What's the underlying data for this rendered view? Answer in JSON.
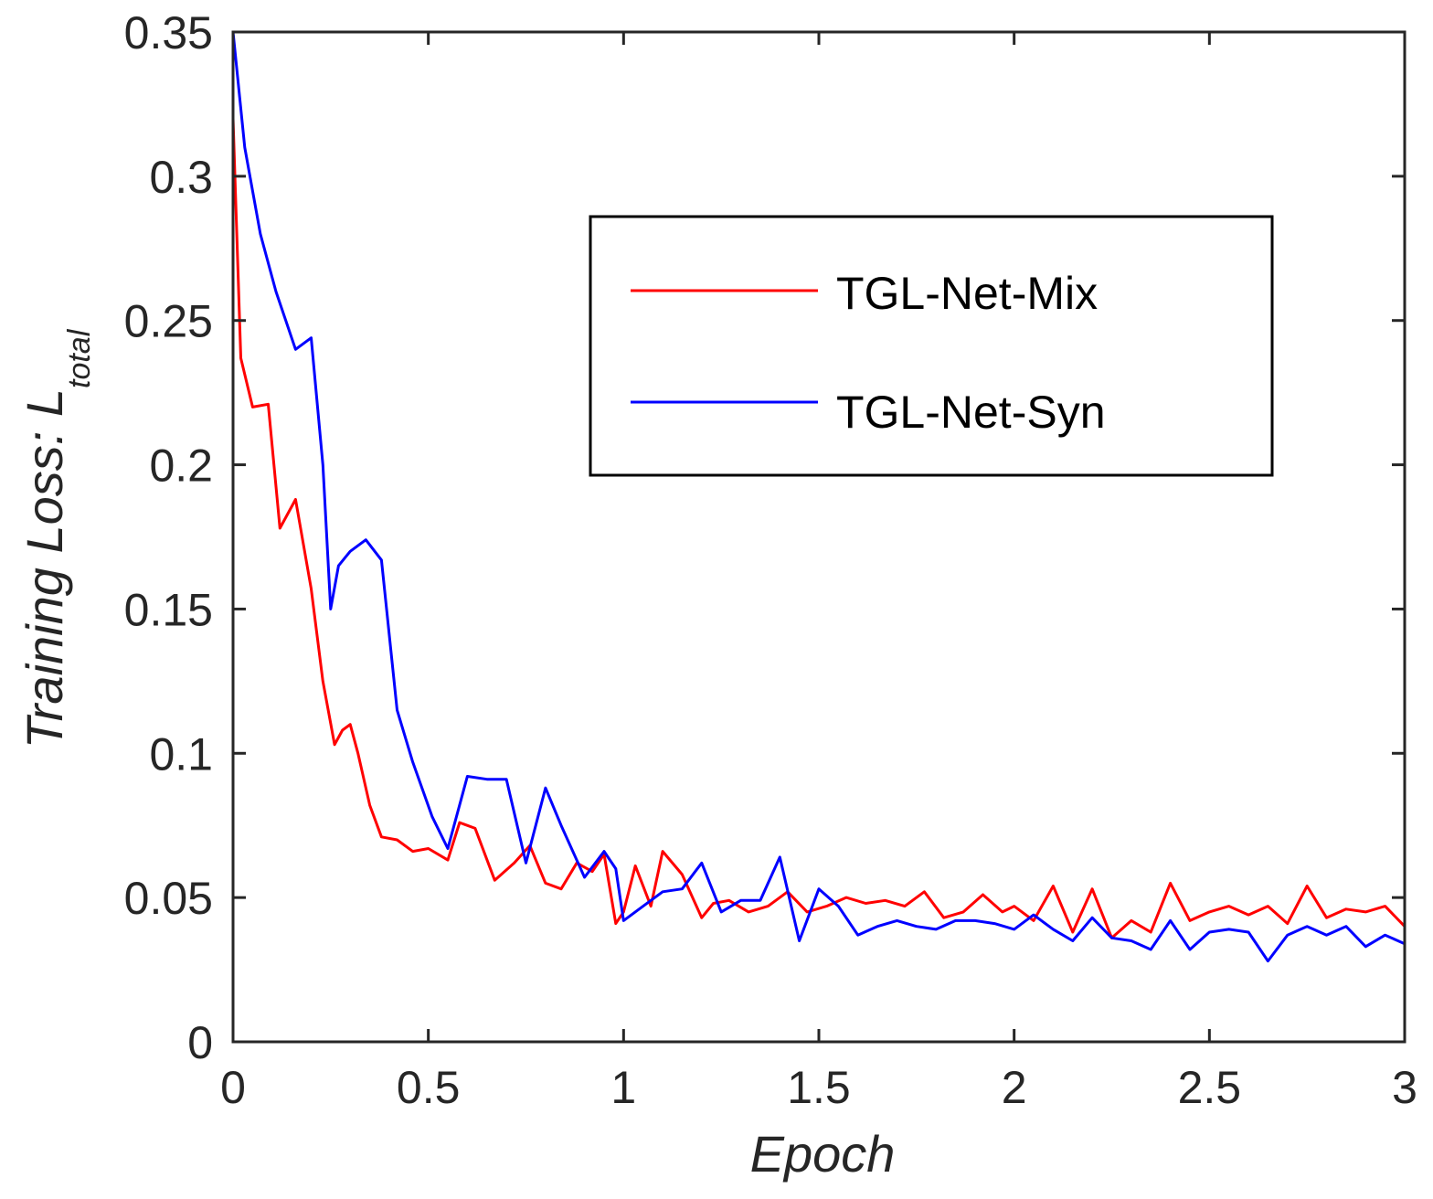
{
  "chart_data": {
    "type": "line",
    "title": "",
    "xlabel": "Epoch",
    "ylabel": "Training Loss:  L",
    "ylabel_subscript": "total",
    "xlim": [
      0,
      3
    ],
    "ylim": [
      0,
      0.35
    ],
    "xticks": [
      0,
      0.5,
      1,
      1.5,
      2,
      2.5,
      3
    ],
    "xtick_labels": [
      "0",
      "0.5",
      "1",
      "1.5",
      "2",
      "2.5",
      "3"
    ],
    "yticks": [
      0,
      0.05,
      0.1,
      0.15,
      0.2,
      0.25,
      0.3,
      0.35
    ],
    "ytick_labels": [
      "0",
      "0.05",
      "0.1",
      "0.15",
      "0.2",
      "0.25",
      "0.3",
      "0.35"
    ],
    "grid": false,
    "legend_position": "top-right",
    "series": [
      {
        "name": "TGL-Net-Mix",
        "color": "#ff0000",
        "x": [
          0,
          0.02,
          0.05,
          0.09,
          0.12,
          0.16,
          0.2,
          0.23,
          0.26,
          0.28,
          0.3,
          0.32,
          0.35,
          0.38,
          0.42,
          0.46,
          0.5,
          0.55,
          0.58,
          0.62,
          0.67,
          0.72,
          0.76,
          0.8,
          0.84,
          0.88,
          0.92,
          0.95,
          0.98,
          1.0,
          1.03,
          1.07,
          1.1,
          1.15,
          1.2,
          1.23,
          1.27,
          1.32,
          1.37,
          1.42,
          1.47,
          1.52,
          1.57,
          1.62,
          1.67,
          1.72,
          1.77,
          1.82,
          1.87,
          1.92,
          1.97,
          2.0,
          2.05,
          2.1,
          2.15,
          2.2,
          2.25,
          2.3,
          2.35,
          2.4,
          2.45,
          2.5,
          2.55,
          2.6,
          2.65,
          2.7,
          2.75,
          2.8,
          2.85,
          2.9,
          2.95,
          3.0
        ],
        "y": [
          0.32,
          0.237,
          0.22,
          0.221,
          0.178,
          0.188,
          0.157,
          0.125,
          0.103,
          0.108,
          0.11,
          0.1,
          0.082,
          0.071,
          0.07,
          0.066,
          0.067,
          0.063,
          0.076,
          0.074,
          0.056,
          0.062,
          0.068,
          0.055,
          0.053,
          0.062,
          0.059,
          0.065,
          0.041,
          0.045,
          0.061,
          0.047,
          0.066,
          0.058,
          0.043,
          0.048,
          0.049,
          0.045,
          0.047,
          0.052,
          0.045,
          0.047,
          0.05,
          0.048,
          0.049,
          0.047,
          0.052,
          0.043,
          0.045,
          0.051,
          0.045,
          0.047,
          0.042,
          0.054,
          0.038,
          0.053,
          0.036,
          0.042,
          0.038,
          0.055,
          0.042,
          0.045,
          0.047,
          0.044,
          0.047,
          0.041,
          0.054,
          0.043,
          0.046,
          0.045,
          0.047,
          0.04
        ]
      },
      {
        "name": "TGL-Net-Syn",
        "color": "#0000ff",
        "x": [
          0,
          0.03,
          0.07,
          0.11,
          0.16,
          0.2,
          0.23,
          0.25,
          0.27,
          0.3,
          0.34,
          0.38,
          0.42,
          0.46,
          0.51,
          0.55,
          0.6,
          0.65,
          0.7,
          0.75,
          0.8,
          0.84,
          0.9,
          0.95,
          0.98,
          1.0,
          1.05,
          1.1,
          1.15,
          1.2,
          1.25,
          1.3,
          1.35,
          1.4,
          1.45,
          1.5,
          1.55,
          1.6,
          1.65,
          1.7,
          1.75,
          1.8,
          1.85,
          1.9,
          1.95,
          2.0,
          2.05,
          2.1,
          2.15,
          2.2,
          2.25,
          2.3,
          2.35,
          2.4,
          2.45,
          2.5,
          2.55,
          2.6,
          2.65,
          2.7,
          2.75,
          2.8,
          2.85,
          2.9,
          2.95,
          3.0
        ],
        "y": [
          0.35,
          0.31,
          0.28,
          0.26,
          0.24,
          0.244,
          0.2,
          0.15,
          0.165,
          0.17,
          0.174,
          0.167,
          0.115,
          0.097,
          0.078,
          0.067,
          0.092,
          0.091,
          0.091,
          0.062,
          0.088,
          0.075,
          0.057,
          0.066,
          0.06,
          0.042,
          0.047,
          0.052,
          0.053,
          0.062,
          0.045,
          0.049,
          0.049,
          0.064,
          0.035,
          0.053,
          0.047,
          0.037,
          0.04,
          0.042,
          0.04,
          0.039,
          0.042,
          0.042,
          0.041,
          0.039,
          0.044,
          0.039,
          0.035,
          0.043,
          0.036,
          0.035,
          0.032,
          0.042,
          0.032,
          0.038,
          0.039,
          0.038,
          0.028,
          0.037,
          0.04,
          0.037,
          0.04,
          0.033,
          0.037,
          0.034
        ]
      }
    ]
  }
}
